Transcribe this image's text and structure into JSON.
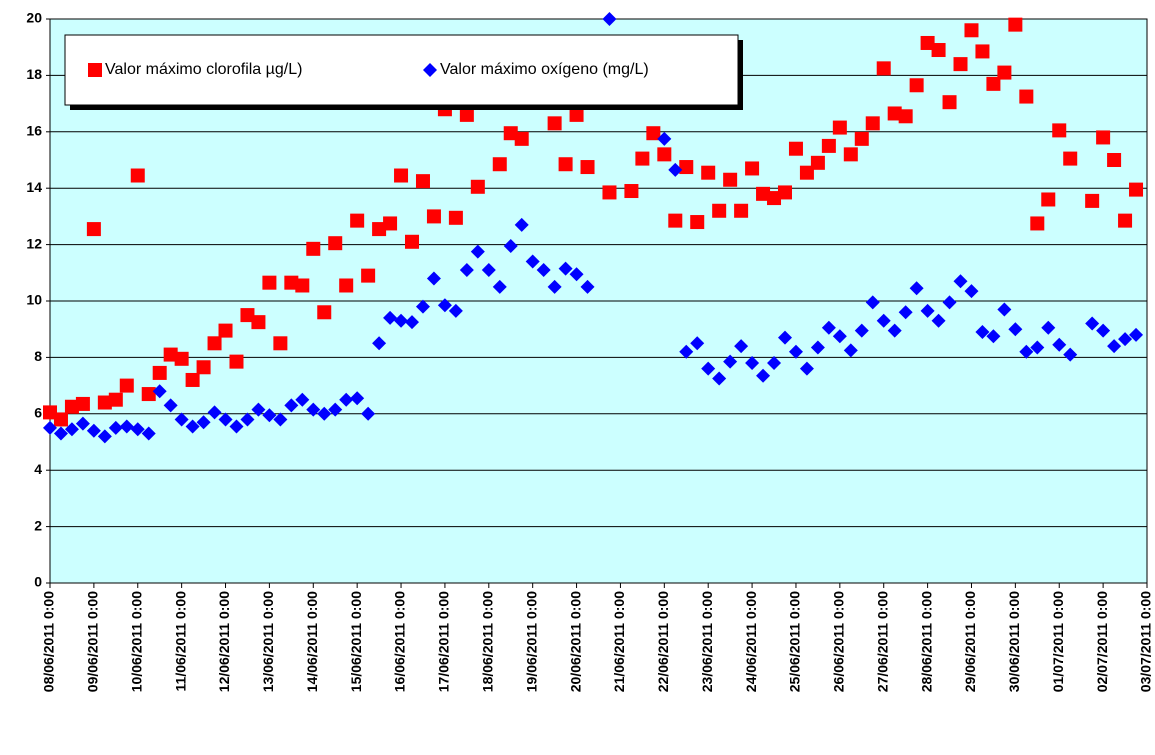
{
  "chart_data": {
    "type": "scatter",
    "ylim": [
      0,
      20
    ],
    "yticks": [
      0,
      2,
      4,
      6,
      8,
      10,
      12,
      14,
      16,
      18,
      20
    ],
    "grid": true,
    "legend": "top-left",
    "xlim": [
      "08/06/2011 0:00",
      "03/07/2011 0:00"
    ],
    "xticks": [
      "08/06/2011 0:00",
      "09/06/2011 0:00",
      "10/06/2011 0:00",
      "11/06/2011 0:00",
      "12/06/2011 0:00",
      "13/06/2011 0:00",
      "14/06/2011 0:00",
      "15/06/2011 0:00",
      "16/06/2011 0:00",
      "17/06/2011 0:00",
      "18/06/2011 0:00",
      "19/06/2011 0:00",
      "20/06/2011 0:00",
      "21/06/2011 0:00",
      "22/06/2011 0:00",
      "23/06/2011 0:00",
      "24/06/2011 0:00",
      "25/06/2011 0:00",
      "26/06/2011 0:00",
      "27/06/2011 0:00",
      "28/06/2011 0:00",
      "29/06/2011 0:00",
      "30/06/2011 0:00",
      "01/07/2011 0:00",
      "02/07/2011 0:00",
      "03/07/2011 0:00"
    ],
    "series": [
      {
        "name": "Valor máximo clorofila µg/L)",
        "color": "#ff0000",
        "marker": "square",
        "x": [
          "08/06/2011 0:00",
          "08/06/2011 6:00",
          "08/06/2011 12:00",
          "08/06/2011 18:00",
          "09/06/2011 0:00",
          "09/06/2011 6:00",
          "09/06/2011 12:00",
          "09/06/2011 18:00",
          "10/06/2011 0:00",
          "10/06/2011 6:00",
          "10/06/2011 12:00",
          "10/06/2011 18:00",
          "11/06/2011 0:00",
          "11/06/2011 6:00",
          "11/06/2011 12:00",
          "11/06/2011 18:00",
          "12/06/2011 0:00",
          "12/06/2011 6:00",
          "12/06/2011 12:00",
          "12/06/2011 18:00",
          "13/06/2011 0:00",
          "13/06/2011 6:00",
          "13/06/2011 12:00",
          "13/06/2011 18:00",
          "14/06/2011 0:00",
          "14/06/2011 6:00",
          "14/06/2011 12:00",
          "14/06/2011 18:00",
          "15/06/2011 0:00",
          "15/06/2011 6:00",
          "15/06/2011 12:00",
          "15/06/2011 18:00",
          "16/06/2011 0:00",
          "16/06/2011 6:00",
          "16/06/2011 12:00",
          "16/06/2011 18:00",
          "17/06/2011 0:00",
          "17/06/2011 6:00",
          "17/06/2011 12:00",
          "17/06/2011 18:00",
          "18/06/2011 6:00",
          "18/06/2011 12:00",
          "18/06/2011 18:00",
          "19/06/2011 12:00",
          "19/06/2011 18:00",
          "20/06/2011 0:00",
          "20/06/2011 6:00",
          "20/06/2011 18:00",
          "21/06/2011 6:00",
          "21/06/2011 12:00",
          "21/06/2011 18:00",
          "22/06/2011 0:00",
          "22/06/2011 6:00",
          "22/06/2011 12:00",
          "22/06/2011 18:00",
          "23/06/2011 0:00",
          "23/06/2011 6:00",
          "23/06/2011 12:00",
          "23/06/2011 18:00",
          "24/06/2011 0:00",
          "24/06/2011 6:00",
          "24/06/2011 12:00",
          "24/06/2011 18:00",
          "25/06/2011 0:00",
          "25/06/2011 6:00",
          "25/06/2011 12:00",
          "25/06/2011 18:00",
          "26/06/2011 0:00",
          "26/06/2011 6:00",
          "26/06/2011 12:00",
          "26/06/2011 18:00",
          "27/06/2011 0:00",
          "27/06/2011 6:00",
          "27/06/2011 12:00",
          "27/06/2011 18:00",
          "28/06/2011 0:00",
          "28/06/2011 6:00",
          "28/06/2011 12:00",
          "28/06/2011 18:00",
          "29/06/2011 0:00",
          "29/06/2011 6:00",
          "29/06/2011 12:00",
          "29/06/2011 18:00",
          "30/06/2011 0:00",
          "30/06/2011 6:00",
          "30/06/2011 12:00",
          "30/06/2011 18:00",
          "01/07/2011 0:00",
          "01/07/2011 6:00",
          "01/07/2011 18:00",
          "02/07/2011 0:00",
          "02/07/2011 6:00",
          "02/07/2011 12:00",
          "02/07/2011 18:00"
        ],
        "values": [
          6.05,
          5.8,
          6.25,
          6.35,
          12.55,
          6.4,
          6.5,
          7.0,
          14.45,
          6.7,
          7.45,
          8.1,
          7.95,
          7.2,
          7.65,
          8.5,
          8.95,
          7.85,
          9.5,
          9.25,
          10.65,
          8.5,
          10.65,
          10.55,
          11.85,
          9.6,
          12.05,
          10.55,
          12.85,
          10.9,
          12.55,
          12.75,
          14.45,
          12.1,
          14.25,
          13.0,
          16.8,
          12.95,
          16.6,
          14.05,
          14.85,
          15.95,
          15.75,
          16.3,
          14.85,
          16.6,
          14.75,
          13.85,
          13.9,
          15.05,
          15.95,
          15.2,
          12.85,
          14.75,
          12.8,
          14.55,
          13.2,
          14.3,
          13.2,
          14.7,
          13.8,
          13.65,
          13.85,
          15.4,
          14.55,
          14.9,
          15.5,
          16.15,
          15.2,
          15.75,
          16.3,
          18.25,
          16.65,
          16.55,
          17.65,
          19.15,
          18.9,
          17.05,
          18.4,
          19.6,
          18.85,
          17.7,
          18.1,
          19.8,
          17.25,
          12.75,
          13.6,
          16.05,
          15.05,
          13.55,
          15.8,
          15.0,
          12.85,
          13.95
        ]
      },
      {
        "name": "Valor máximo oxígeno (mg/L)",
        "color": "#0000ff",
        "marker": "diamond",
        "x": [
          "08/06/2011 0:00",
          "08/06/2011 6:00",
          "08/06/2011 12:00",
          "08/06/2011 18:00",
          "09/06/2011 0:00",
          "09/06/2011 6:00",
          "09/06/2011 12:00",
          "09/06/2011 18:00",
          "10/06/2011 0:00",
          "10/06/2011 6:00",
          "10/06/2011 12:00",
          "10/06/2011 18:00",
          "11/06/2011 0:00",
          "11/06/2011 6:00",
          "11/06/2011 12:00",
          "11/06/2011 18:00",
          "12/06/2011 0:00",
          "12/06/2011 6:00",
          "12/06/2011 12:00",
          "12/06/2011 18:00",
          "13/06/2011 0:00",
          "13/06/2011 6:00",
          "13/06/2011 12:00",
          "13/06/2011 18:00",
          "14/06/2011 0:00",
          "14/06/2011 6:00",
          "14/06/2011 12:00",
          "14/06/2011 18:00",
          "15/06/2011 0:00",
          "15/06/2011 6:00",
          "15/06/2011 12:00",
          "15/06/2011 18:00",
          "16/06/2011 0:00",
          "16/06/2011 6:00",
          "16/06/2011 12:00",
          "16/06/2011 18:00",
          "17/06/2011 0:00",
          "17/06/2011 6:00",
          "17/06/2011 12:00",
          "17/06/2011 18:00",
          "18/06/2011 0:00",
          "18/06/2011 6:00",
          "18/06/2011 12:00",
          "18/06/2011 18:00",
          "19/06/2011 0:00",
          "19/06/2011 6:00",
          "19/06/2011 12:00",
          "19/06/2011 18:00",
          "20/06/2011 0:00",
          "20/06/2011 6:00",
          "20/06/2011 18:00",
          "22/06/2011 0:00",
          "22/06/2011 6:00",
          "22/06/2011 12:00",
          "22/06/2011 18:00",
          "23/06/2011 0:00",
          "23/06/2011 6:00",
          "23/06/2011 12:00",
          "23/06/2011 18:00",
          "24/06/2011 0:00",
          "24/06/2011 6:00",
          "24/06/2011 12:00",
          "24/06/2011 18:00",
          "25/06/2011 0:00",
          "25/06/2011 6:00",
          "25/06/2011 12:00",
          "25/06/2011 18:00",
          "26/06/2011 0:00",
          "26/06/2011 6:00",
          "26/06/2011 12:00",
          "26/06/2011 18:00",
          "27/06/2011 0:00",
          "27/06/2011 6:00",
          "27/06/2011 12:00",
          "27/06/2011 18:00",
          "28/06/2011 0:00",
          "28/06/2011 6:00",
          "28/06/2011 12:00",
          "28/06/2011 18:00",
          "29/06/2011 0:00",
          "29/06/2011 6:00",
          "29/06/2011 12:00",
          "29/06/2011 18:00",
          "30/06/2011 0:00",
          "30/06/2011 6:00",
          "30/06/2011 12:00",
          "30/06/2011 18:00",
          "01/07/2011 0:00",
          "01/07/2011 6:00",
          "01/07/2011 18:00",
          "02/07/2011 0:00",
          "02/07/2011 6:00",
          "02/07/2011 12:00",
          "02/07/2011 18:00"
        ],
        "values": [
          5.5,
          5.3,
          5.45,
          5.65,
          5.4,
          5.2,
          5.5,
          5.55,
          5.45,
          5.3,
          6.8,
          6.3,
          5.8,
          5.55,
          5.7,
          6.05,
          5.8,
          5.55,
          5.8,
          6.15,
          5.95,
          5.8,
          6.3,
          6.5,
          6.15,
          6.0,
          6.15,
          6.5,
          6.55,
          6.0,
          8.5,
          9.4,
          9.3,
          9.25,
          9.8,
          10.8,
          9.85,
          9.65,
          11.1,
          11.75,
          11.1,
          10.5,
          11.95,
          12.7,
          11.4,
          11.1,
          10.5,
          11.15,
          10.95,
          10.5,
          20.0,
          15.75,
          14.65,
          8.2,
          8.5,
          7.6,
          7.25,
          7.85,
          8.4,
          7.8,
          7.35,
          7.8,
          8.7,
          8.2,
          7.6,
          8.35,
          9.05,
          8.75,
          8.25,
          8.95,
          9.95,
          9.3,
          8.95,
          9.6,
          10.45,
          9.65,
          9.3,
          9.95,
          10.7,
          10.35,
          8.9,
          8.75,
          9.7,
          9.0,
          8.2,
          8.35,
          9.05,
          8.45,
          8.1,
          9.2,
          8.95,
          8.4,
          8.65,
          8.8
        ]
      }
    ]
  }
}
